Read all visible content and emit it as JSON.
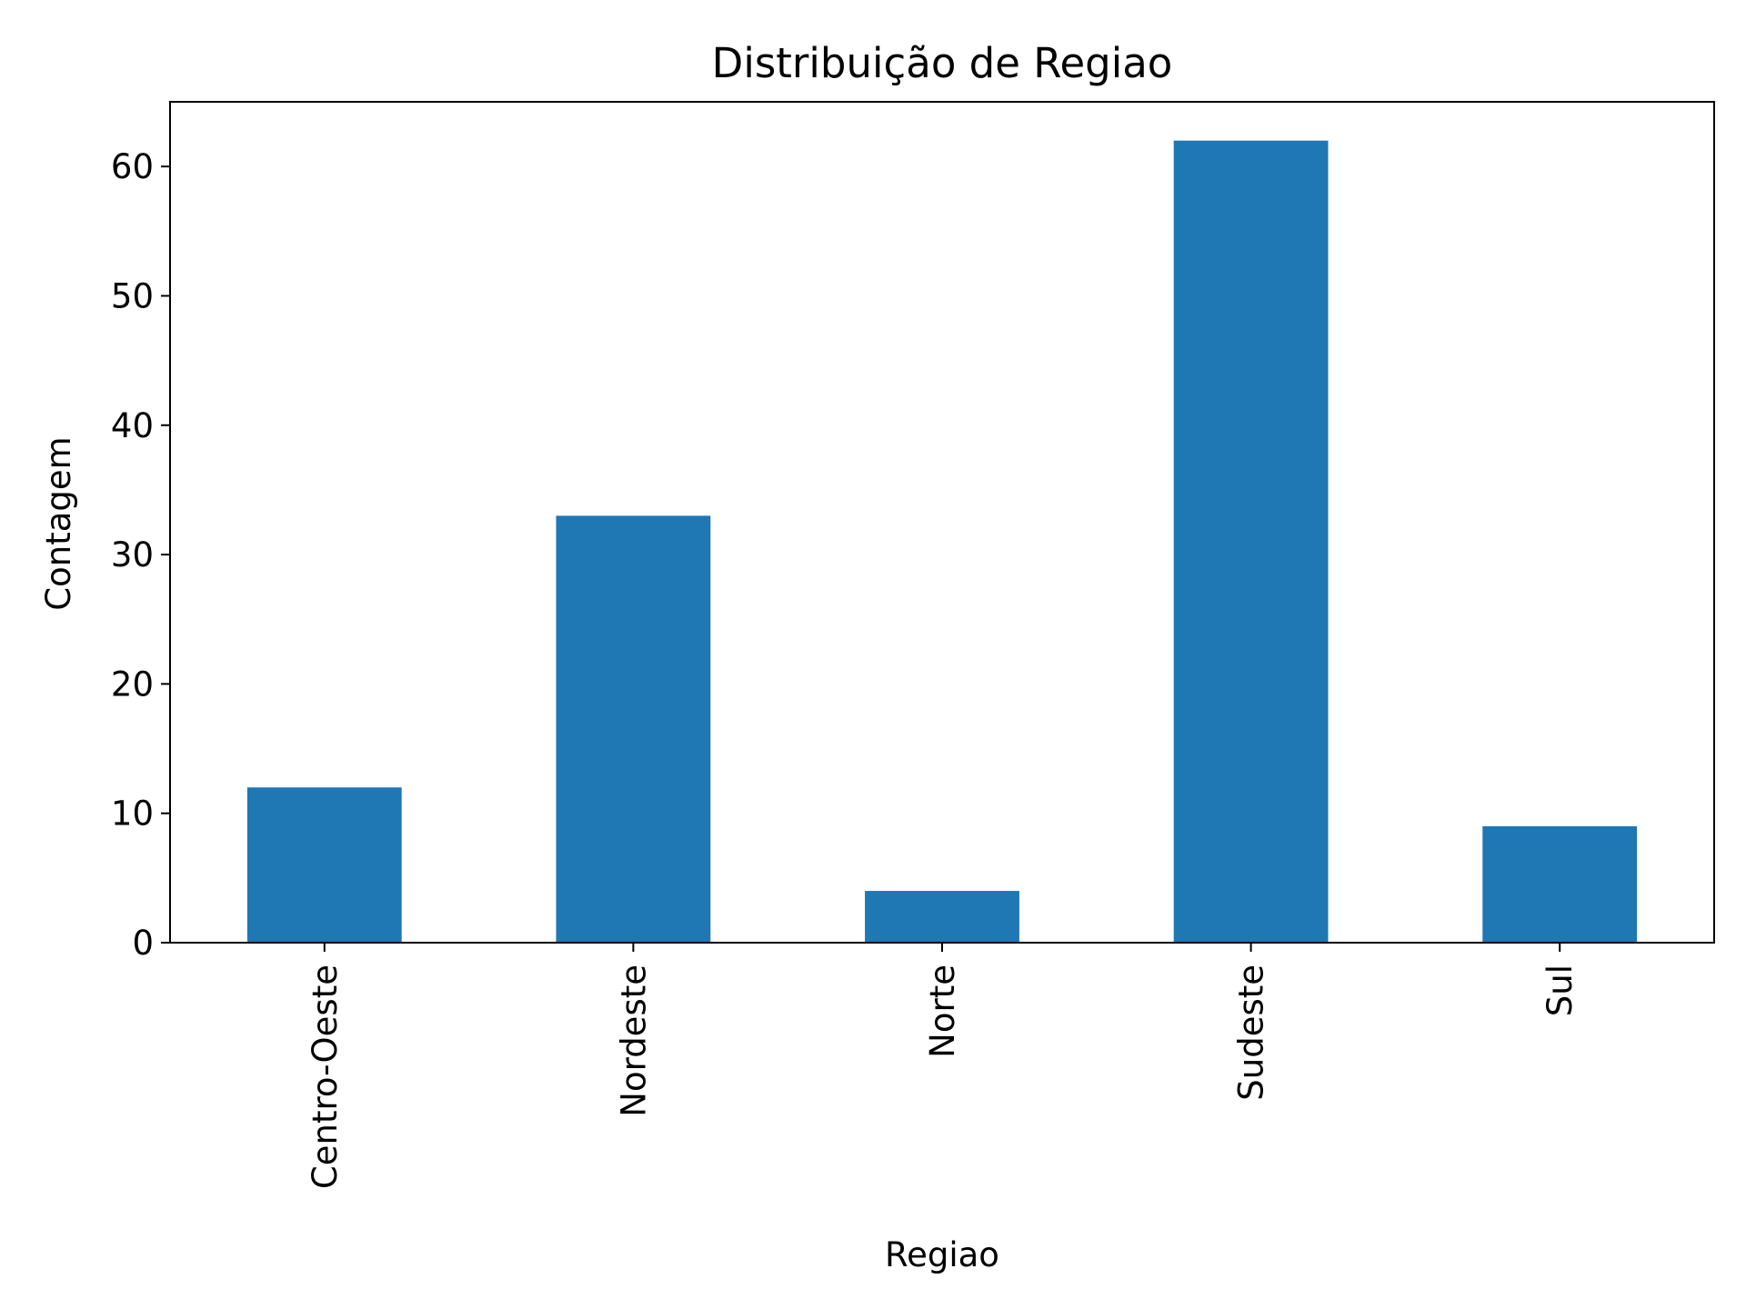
{
  "chart_data": {
    "type": "bar",
    "title": "Distribuição de Regiao",
    "xlabel": "Regiao",
    "ylabel": "Contagem",
    "categories": [
      "Centro-Oeste",
      "Nordeste",
      "Norte",
      "Sudeste",
      "Sul"
    ],
    "values": [
      12,
      33,
      4,
      62,
      9
    ],
    "ylim": [
      0,
      65
    ],
    "yticks": [
      0,
      10,
      20,
      30,
      40,
      50,
      60
    ],
    "grid": false,
    "colors": {
      "bar": "#1f77b4",
      "axes": "#000000"
    }
  }
}
